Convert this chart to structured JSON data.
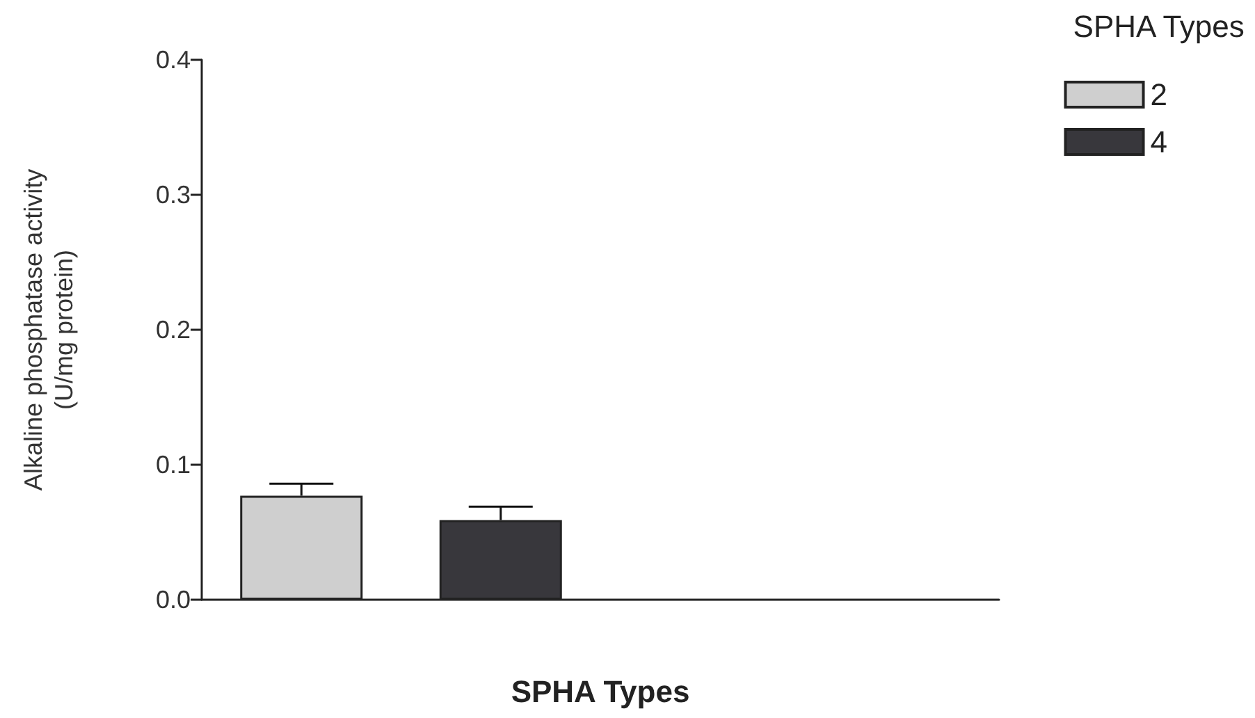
{
  "chart_data": {
    "type": "bar",
    "xlabel": "SPHA Types",
    "ylabel": "Alkaline phosphatase activity\n(U/mg protein)",
    "legend_title": "SPHA Types",
    "categories": [
      null,
      null,
      null,
      null
    ],
    "series": [
      {
        "name": "2",
        "color": "#cfcfcf",
        "values": [
          0.077,
          null,
          null,
          null
        ],
        "errors": [
          0.009,
          null,
          null,
          null
        ]
      },
      {
        "name": "4",
        "color": "#38373c",
        "values": [
          null,
          0.059,
          null,
          null
        ],
        "errors": [
          null,
          0.01,
          null,
          null
        ]
      }
    ],
    "ylim": [
      0,
      0.4
    ],
    "yticks": [
      {
        "value": 0,
        "label": "0.0"
      },
      {
        "value": 0.1,
        "label": "0.1"
      },
      {
        "value": 0.2,
        "label": "0.2"
      },
      {
        "value": 0.3,
        "label": "0.3"
      },
      {
        "value": 0.4,
        "label": "0.4"
      }
    ],
    "grid": false,
    "legend": "top right"
  }
}
